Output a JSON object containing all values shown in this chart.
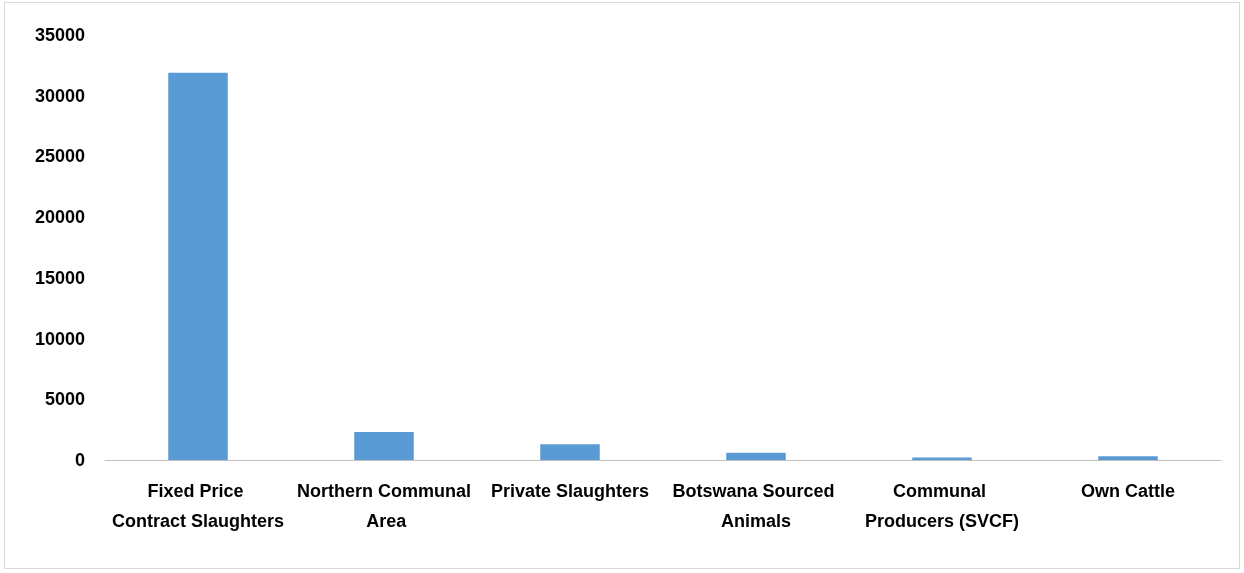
{
  "chart_data": {
    "type": "bar",
    "categories": [
      "Fixed Price Contract Slaughters",
      "Northern Communal Area",
      "Private Slaughters",
      "Botswana Sourced Animals",
      "Communal Producers (SVCF)",
      "Own Cattle"
    ],
    "values": [
      31900,
      2300,
      1300,
      600,
      200,
      300
    ],
    "color": "#5b9bd5",
    "ylim": [
      0,
      35000
    ],
    "yticks": [
      0,
      5000,
      10000,
      15000,
      20000,
      25000,
      30000,
      35000
    ],
    "grid": false
  }
}
